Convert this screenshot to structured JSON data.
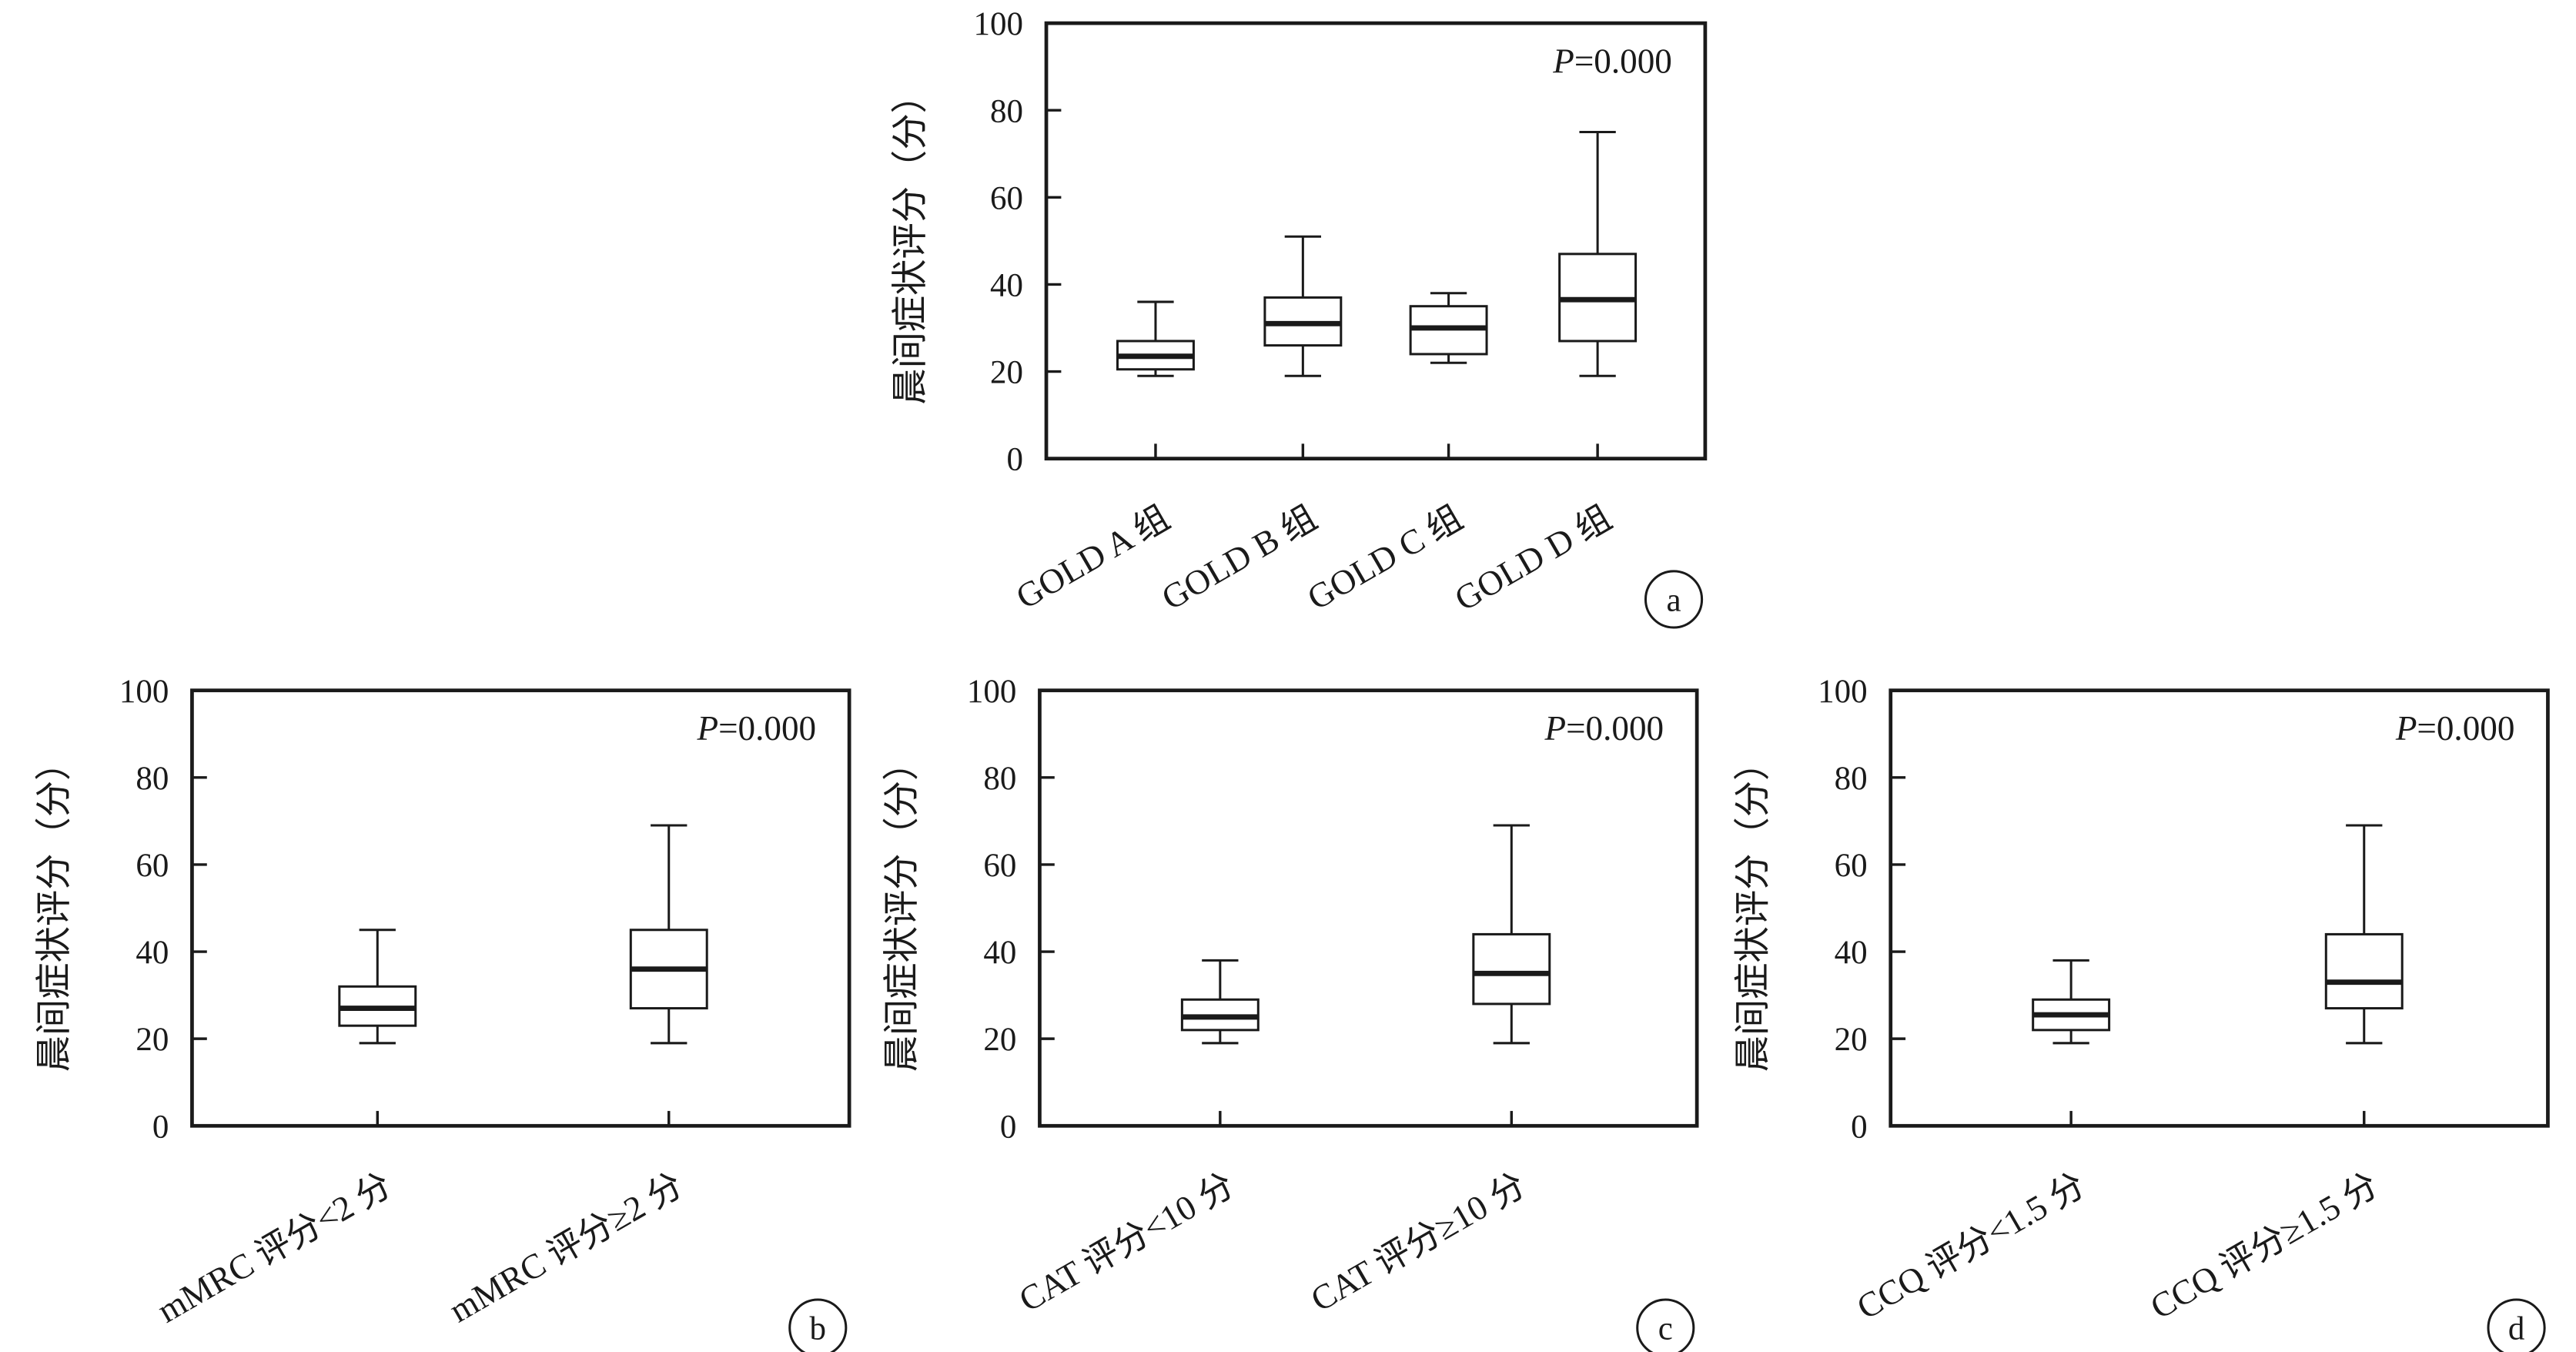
{
  "chart_data": [
    {
      "type": "boxplot",
      "panel_label": "a",
      "ylabel": "晨间症状评分（分）",
      "annotation": "P=0.000",
      "annotation_italic": "P",
      "annotation_rest": "=0.000",
      "ylim": [
        0,
        100
      ],
      "yticks": [
        0,
        20,
        40,
        60,
        80,
        100
      ],
      "categories": [
        "GOLD A 组",
        "GOLD B 组",
        "GOLD C 组",
        "GOLD D 组"
      ],
      "boxes": [
        {
          "min": 19,
          "q1": 20.5,
          "median": 23.5,
          "q3": 27,
          "max": 36
        },
        {
          "min": 19,
          "q1": 26,
          "median": 31,
          "q3": 37,
          "max": 51
        },
        {
          "min": 22,
          "q1": 24,
          "median": 30,
          "q3": 35,
          "max": 38
        },
        {
          "min": 19,
          "q1": 27,
          "median": 36.5,
          "q3": 47,
          "max": 75
        }
      ]
    },
    {
      "type": "boxplot",
      "panel_label": "b",
      "ylabel": "晨间症状评分（分）",
      "annotation": "P=0.000",
      "annotation_italic": "P",
      "annotation_rest": "=0.000",
      "ylim": [
        0,
        100
      ],
      "yticks": [
        0,
        20,
        40,
        60,
        80,
        100
      ],
      "categories": [
        "mMRC 评分<2 分",
        "mMRC 评分≥2 分"
      ],
      "boxes": [
        {
          "min": 19,
          "q1": 23,
          "median": 27,
          "q3": 32,
          "max": 45
        },
        {
          "min": 19,
          "q1": 27,
          "median": 36,
          "q3": 45,
          "max": 69
        }
      ]
    },
    {
      "type": "boxplot",
      "panel_label": "c",
      "ylabel": "晨间症状评分（分）",
      "annotation": "P=0.000",
      "annotation_italic": "P",
      "annotation_rest": "=0.000",
      "ylim": [
        0,
        100
      ],
      "yticks": [
        0,
        20,
        40,
        60,
        80,
        100
      ],
      "categories": [
        "CAT 评分<10 分",
        "CAT 评分≥10 分"
      ],
      "boxes": [
        {
          "min": 19,
          "q1": 22,
          "median": 25,
          "q3": 29,
          "max": 38
        },
        {
          "min": 19,
          "q1": 28,
          "median": 35,
          "q3": 44,
          "max": 69
        }
      ]
    },
    {
      "type": "boxplot",
      "panel_label": "d",
      "ylabel": "晨间症状评分（分）",
      "annotation": "P=0.000",
      "annotation_italic": "P",
      "annotation_rest": "=0.000",
      "ylim": [
        0,
        100
      ],
      "yticks": [
        0,
        20,
        40,
        60,
        80,
        100
      ],
      "categories": [
        "CCQ 评分<1.5 分",
        "CCQ 评分≥1.5 分"
      ],
      "boxes": [
        {
          "min": 19,
          "q1": 22,
          "median": 25.5,
          "q3": 29,
          "max": 38
        },
        {
          "min": 19,
          "q1": 27,
          "median": 33,
          "q3": 44,
          "max": 69
        }
      ]
    }
  ]
}
